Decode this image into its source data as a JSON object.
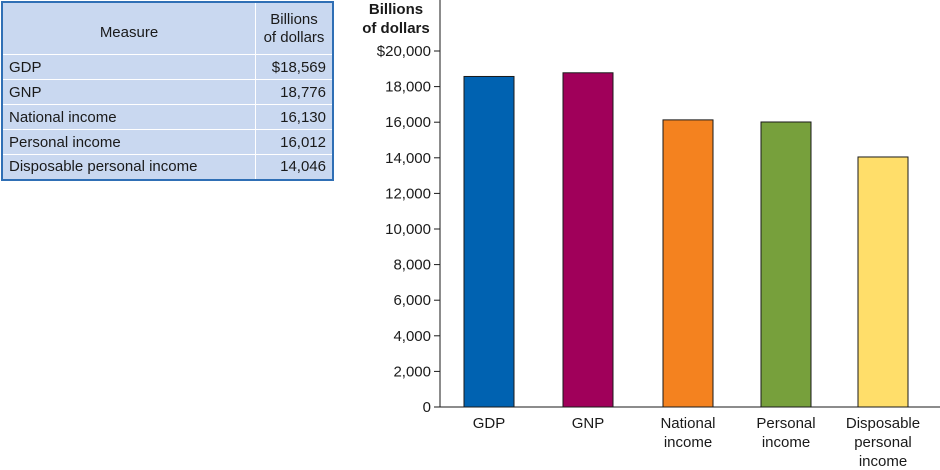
{
  "table": {
    "headers": {
      "measure": "Measure",
      "value_line1": "Billions",
      "value_line2": "of dollars"
    },
    "rows": [
      {
        "measure": "GDP",
        "value": "$18,569"
      },
      {
        "measure": "GNP",
        "value": "18,776"
      },
      {
        "measure": "National income",
        "value": "16,130"
      },
      {
        "measure": "Personal income",
        "value": "16,012"
      },
      {
        "measure": "Disposable personal income",
        "value": "14,046"
      }
    ]
  },
  "chart_data": {
    "type": "bar",
    "ylabel_line1": "Billions",
    "ylabel_line2": "of dollars",
    "categories": [
      [
        "GDP"
      ],
      [
        "GNP"
      ],
      [
        "National",
        "income"
      ],
      [
        "Personal",
        "income"
      ],
      [
        "Disposable",
        "personal",
        "income"
      ]
    ],
    "values": [
      18569,
      18776,
      16130,
      16012,
      14046
    ],
    "colors": [
      "#0062b1",
      "#a0005a",
      "#f4821f",
      "#77a03c",
      "#ffde6a"
    ],
    "ylim": [
      0,
      20000
    ],
    "yticks": [
      0,
      2000,
      4000,
      6000,
      8000,
      10000,
      12000,
      14000,
      16000,
      18000,
      20000
    ],
    "ytick_labels": [
      "0",
      "2,000",
      "4,000",
      "6,000",
      "8,000",
      "10,000",
      "12,000",
      "14,000",
      "16,000",
      "18,000",
      "$20,000"
    ],
    "grid": false
  }
}
